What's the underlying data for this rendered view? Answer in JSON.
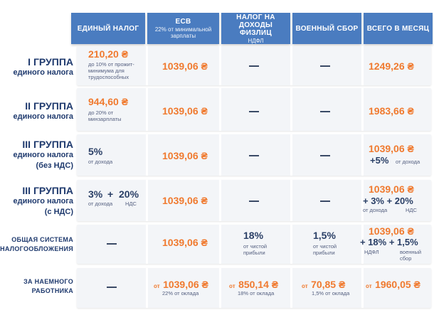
{
  "headers": [
    {
      "title": "ЕДИНЫЙ НАЛОГ",
      "sub": ""
    },
    {
      "title": "ЕСВ",
      "sub": "22% от минимальной зарплаты"
    },
    {
      "title": "НАЛОГ НА ДОХОДЫ ФИЗЛИЦ",
      "sub": "НДФЛ"
    },
    {
      "title": "ВОЕННЫЙ СБОР",
      "sub": ""
    },
    {
      "title": "ВСЕГО В МЕСЯЦ",
      "sub": ""
    }
  ],
  "rows": [
    {
      "label_a": "I группа",
      "label_b": "единого налога",
      "label_c": "",
      "single_tax": "210,20 ₴",
      "single_note": "до 10% от прожит-минимума для трудоспособных",
      "esv": "1039,06 ₴",
      "ndfl": "—",
      "military": "—",
      "total": "1249,26 ₴"
    },
    {
      "label_a": "II группа",
      "label_b": "единого налога",
      "label_c": "",
      "single_tax": "944,60 ₴",
      "single_note": "до 20% от минзарплаты",
      "esv": "1039,06 ₴",
      "ndfl": "—",
      "military": "—",
      "total": "1983,66 ₴"
    },
    {
      "label_a": "III группа",
      "label_b": "единого налога",
      "label_c": "(без НДС)",
      "single_tax": "5%",
      "single_note": "от дохода",
      "esv": "1039,06 ₴",
      "ndfl": "—",
      "military": "—",
      "total": "1039,06 ₴",
      "total_extra": "+5%",
      "total_extra_note": "от дохода"
    },
    {
      "label_a": "III группа",
      "label_b": "единого налога",
      "label_c": "(с НДС)",
      "single_tax_a": "3%",
      "single_plus": "+",
      "single_tax_b": "20%",
      "single_note_a": "от дохода",
      "single_note_b": "НДС",
      "esv": "1039,06 ₴",
      "ndfl": "—",
      "military": "—",
      "total": "1039,06 ₴",
      "total_extra": "+ 3% + 20%",
      "total_note_a": "от дохода",
      "total_note_b": "НДС"
    },
    {
      "label_a": "ОБЩАЯ СИСТЕМА",
      "label_b": "НАЛОГООБЛОЖЕНИЯ",
      "single_tax": "—",
      "esv": "1039,06 ₴",
      "ndfl": "18%",
      "ndfl_note": "от чистой прибыли",
      "military": "1,5%",
      "military_note": "от чистой прибыли",
      "total": "1039,06 ₴",
      "total_extra": "+ 18% + 1,5%",
      "total_note_a": "НДФЛ",
      "total_note_b": "военный сбор"
    },
    {
      "label_a": "ЗА НАЕМНОГО",
      "label_b": "РАБОТНИКА",
      "single_tax": "—",
      "esv_prefix": "от",
      "esv": "1039,06 ₴",
      "esv_note": "22% от оклада",
      "ndfl_prefix": "от",
      "ndfl": "850,14 ₴",
      "ndfl_note": "18% от оклада",
      "military_prefix": "от",
      "military": "70,85 ₴",
      "military_note": "1,5% от оклада",
      "total_prefix": "от",
      "total": "1960,05 ₴"
    }
  ]
}
